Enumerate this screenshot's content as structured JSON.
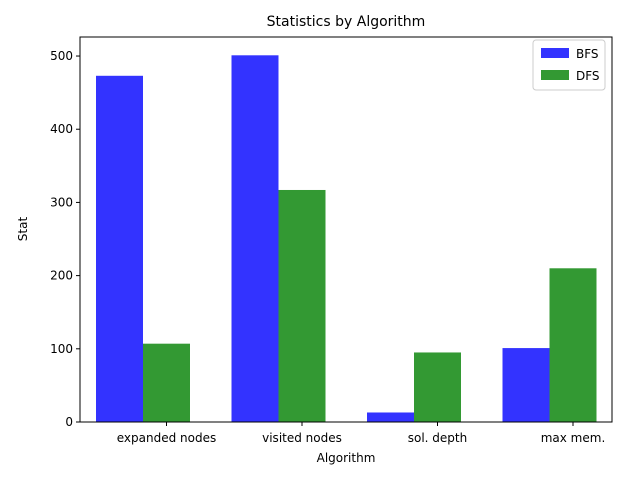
{
  "chart_data": {
    "type": "bar",
    "title": "Statistics by Algorithm",
    "xlabel": "Algorithm",
    "ylabel": "Stat",
    "categories": [
      "expanded nodes",
      "visited nodes",
      "sol. depth",
      "max mem."
    ],
    "series": [
      {
        "name": "BFS",
        "values": [
          473,
          501,
          13,
          101
        ],
        "color": "#3333ff"
      },
      {
        "name": "DFS",
        "values": [
          107,
          317,
          95,
          210
        ],
        "color": "#339933"
      }
    ],
    "ylim": [
      0,
      526
    ],
    "yticks": [
      0,
      100,
      200,
      300,
      400,
      500
    ],
    "grid": false,
    "legend": "top-right"
  }
}
